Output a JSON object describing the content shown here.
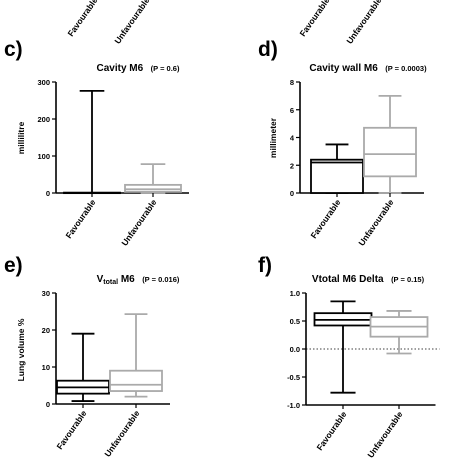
{
  "top_fragment": {
    "tick_labels": [
      "Favourable",
      "Unfavourable",
      "Favourable",
      "Unfavourable"
    ]
  },
  "chart_data": [
    {
      "panel_letter": "c)",
      "type": "box",
      "title": "Cavity M6",
      "p_text": "(P = 0.6)",
      "ylabel": "millilitre",
      "ylim": [
        0,
        300
      ],
      "yticks": [
        0,
        100,
        200,
        300
      ],
      "categories": [
        "Favourable",
        "Unfavourable"
      ],
      "boxes": [
        {
          "category": "Favourable",
          "min": 0,
          "q1": 0,
          "median": 0,
          "q3": 1,
          "max": 276,
          "color": "#000000"
        },
        {
          "category": "Unfavourable",
          "min": 0,
          "q1": 3,
          "median": 10,
          "q3": 22,
          "max": 78,
          "color": "#aaaaaa"
        }
      ]
    },
    {
      "panel_letter": "d)",
      "type": "box",
      "title": "Cavity wall M6",
      "p_text": "(P = 0.0003)",
      "ylabel": "millimeter",
      "ylim": [
        0,
        8
      ],
      "yticks": [
        0,
        2,
        4,
        6,
        8
      ],
      "categories": [
        "Favourable",
        "Unfavourable"
      ],
      "boxes": [
        {
          "category": "Favourable",
          "min": 0,
          "q1": 0,
          "median": 2.2,
          "q3": 2.4,
          "max": 3.5,
          "color": "#000000"
        },
        {
          "category": "Unfavourable",
          "min": 0,
          "q1": 1.2,
          "median": 2.8,
          "q3": 4.7,
          "max": 7.0,
          "color": "#aaaaaa"
        }
      ]
    },
    {
      "panel_letter": "e)",
      "type": "box",
      "title_main": "V",
      "title_sub": "total",
      "title_rest": " M6",
      "p_text": "(P = 0.016)",
      "ylabel": "Lung volume %",
      "ylim": [
        0,
        30
      ],
      "yticks": [
        0,
        10,
        20,
        30
      ],
      "categories": [
        "Favourable",
        "Unfavourable"
      ],
      "boxes": [
        {
          "category": "Favourable",
          "min": 0.8,
          "q1": 2.8,
          "median": 4.5,
          "q3": 6.3,
          "max": 19.0,
          "color": "#000000"
        },
        {
          "category": "Unfavourable",
          "min": 2.0,
          "q1": 3.5,
          "median": 5.2,
          "q3": 9.0,
          "max": 24.3,
          "color": "#aaaaaa"
        }
      ]
    },
    {
      "panel_letter": "f)",
      "type": "box",
      "title": "Vtotal M6 Delta",
      "p_text": "(P = 0.15)",
      "ylabel": "",
      "ylim": [
        -1.0,
        1.0
      ],
      "yticks": [
        -1.0,
        -0.5,
        0.0,
        0.5,
        1.0
      ],
      "reference_line": 0.0,
      "categories": [
        "Favourable",
        "Unfavourable"
      ],
      "boxes": [
        {
          "category": "Favourable",
          "min": -0.78,
          "q1": 0.42,
          "median": 0.52,
          "q3": 0.64,
          "max": 0.85,
          "color": "#000000"
        },
        {
          "category": "Unfavourable",
          "min": -0.08,
          "q1": 0.22,
          "median": 0.4,
          "q3": 0.57,
          "max": 0.68,
          "color": "#aaaaaa"
        }
      ]
    }
  ]
}
